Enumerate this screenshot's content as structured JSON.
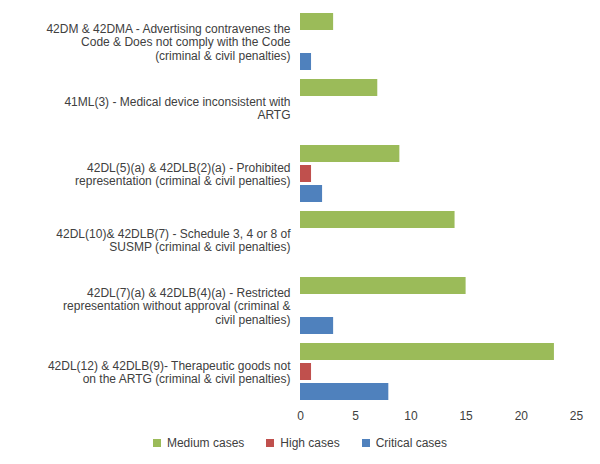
{
  "chart_data": {
    "type": "bar",
    "orientation": "horizontal",
    "categories": [
      "42DM & 42DMA - Advertising contravenes the Code & Does not comply with the Code (criminal & civil penalties)",
      "41ML(3) - Medical device inconsistent with ARTG",
      "42DL(5)(a) & 42DLB(2)(a) - Prohibited representation (criminal & civil penalties)",
      "42DL(10)& 42DLB(7) - Schedule 3, 4 or 8 of SUSMP (criminal & civil penalties)",
      "42DL(7)(a) & 42DLB(4)(a) - Restricted representation without approval (criminal & civil penalties)",
      "42DL(12) & 42DLB(9)- Therapeutic goods not on the ARTG (criminal & civil penalties)"
    ],
    "series": [
      {
        "name": "Medium cases",
        "color": "#9bbb59",
        "values": [
          3,
          7,
          9,
          14,
          15,
          23
        ]
      },
      {
        "name": "High cases",
        "color": "#c0504d",
        "values": [
          0,
          0,
          1,
          0,
          0,
          1
        ]
      },
      {
        "name": "Critical cases",
        "color": "#4f81bd",
        "values": [
          1,
          0,
          2,
          0,
          3,
          8
        ]
      }
    ],
    "xlim": [
      0,
      25
    ],
    "xticks": [
      0,
      5,
      10,
      15,
      20,
      25
    ],
    "grid": false,
    "legend": "bottom"
  }
}
